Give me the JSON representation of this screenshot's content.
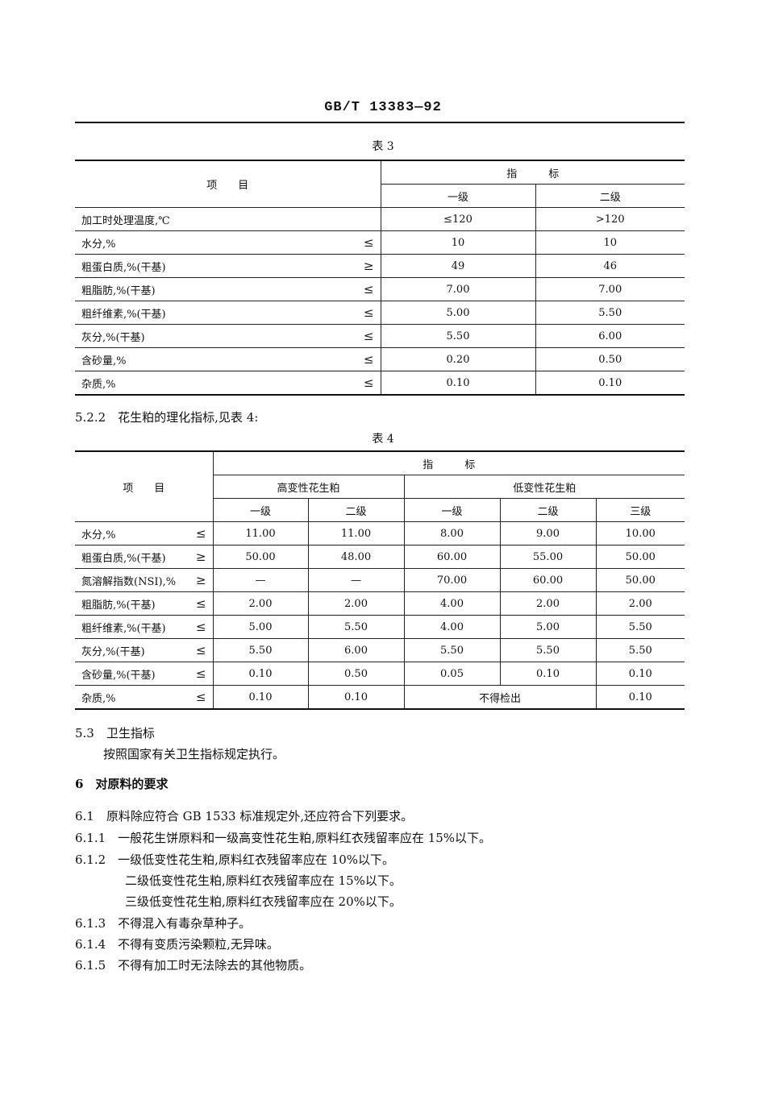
{
  "header": {
    "doc_number": "GB/T 13383—92"
  },
  "table3": {
    "caption": "表 3",
    "col_item": "项　　目",
    "col_index": "指　　　标",
    "grades": [
      "一级",
      "二级"
    ],
    "rows": [
      {
        "item": "加工时处理温度,℃",
        "op": "",
        "values": [
          "≤120",
          ">120"
        ]
      },
      {
        "item": "水分,%",
        "op": "≤",
        "values": [
          "10",
          "10"
        ]
      },
      {
        "item": "粗蛋白质,%(干基)",
        "op": "≥",
        "values": [
          "49",
          "46"
        ]
      },
      {
        "item": "粗脂肪,%(干基)",
        "op": "≤",
        "values": [
          "7.00",
          "7.00"
        ]
      },
      {
        "item": "粗纤维素,%(干基)",
        "op": "≤",
        "values": [
          "5.00",
          "5.50"
        ]
      },
      {
        "item": "灰分,%(干基)",
        "op": "≤",
        "values": [
          "5.50",
          "6.00"
        ]
      },
      {
        "item": "含砂量,%",
        "op": "≤",
        "values": [
          "0.20",
          "0.50"
        ]
      },
      {
        "item": "杂质,%",
        "op": "≤",
        "values": [
          "0.10",
          "0.10"
        ]
      }
    ]
  },
  "para_522": "5.2.2　花生粕的理化指标,见表 4:",
  "table4": {
    "caption": "表 4",
    "col_item": "项　　目",
    "col_index": "指　　　标",
    "group_high": "高变性花生粕",
    "group_low": "低变性花生粕",
    "grades": [
      "一级",
      "二级",
      "一级",
      "二级",
      "三级"
    ],
    "rows": [
      {
        "item": "水分,%",
        "op": "≤",
        "values": [
          "11.00",
          "11.00",
          "8.00",
          "9.00",
          "10.00"
        ]
      },
      {
        "item": "粗蛋白质,%(干基)",
        "op": "≥",
        "values": [
          "50.00",
          "48.00",
          "60.00",
          "55.00",
          "50.00"
        ]
      },
      {
        "item": "氮溶解指数(NSI),%",
        "op": "≥",
        "values": [
          "—",
          "—",
          "70.00",
          "60.00",
          "50.00"
        ]
      },
      {
        "item": "粗脂肪,%(干基)",
        "op": "≤",
        "values": [
          "2.00",
          "2.00",
          "4.00",
          "2.00",
          "2.00"
        ]
      },
      {
        "item": "粗纤维素,%(干基)",
        "op": "≤",
        "values": [
          "5.00",
          "5.50",
          "4.00",
          "5.00",
          "5.50"
        ]
      },
      {
        "item": "灰分,%(干基)",
        "op": "≤",
        "values": [
          "5.50",
          "6.00",
          "5.50",
          "5.50",
          "5.50"
        ]
      },
      {
        "item": "含砂量,%(干基)",
        "op": "≤",
        "values": [
          "0.10",
          "0.50",
          "0.05",
          "0.10",
          "0.10"
        ]
      }
    ],
    "last_row": {
      "item": "杂质,%",
      "op": "≤",
      "v1": "0.10",
      "v2": "0.10",
      "merged": "不得检出",
      "v5": "0.10"
    }
  },
  "body": [
    {
      "text": "5.3　卫生指标"
    },
    {
      "text": "按照国家有关卫生指标规定执行。"
    },
    {
      "text": "6　对原料的要求"
    },
    {
      "text": "6.1　原料除应符合 GB 1533 标准规定外,还应符合下列要求。"
    },
    {
      "text": "6.1.1　一般花生饼原料和一级高变性花生粕,原料红衣残留率应在 15%以下。"
    },
    {
      "text": "6.1.2　一级低变性花生粕,原料红衣残留率应在 10%以下。"
    },
    {
      "text": "二级低变性花生粕,原料红衣残留率应在 15%以下。"
    },
    {
      "text": "三级低变性花生粕,原料红衣残留率应在 20%以下。"
    },
    {
      "text": "6.1.3　不得混入有毒杂草种子。"
    },
    {
      "text": "6.1.4　不得有变质污染颗粒,无异味。"
    },
    {
      "text": "6.1.5　不得有加工时无法除去的其他物质。"
    }
  ]
}
